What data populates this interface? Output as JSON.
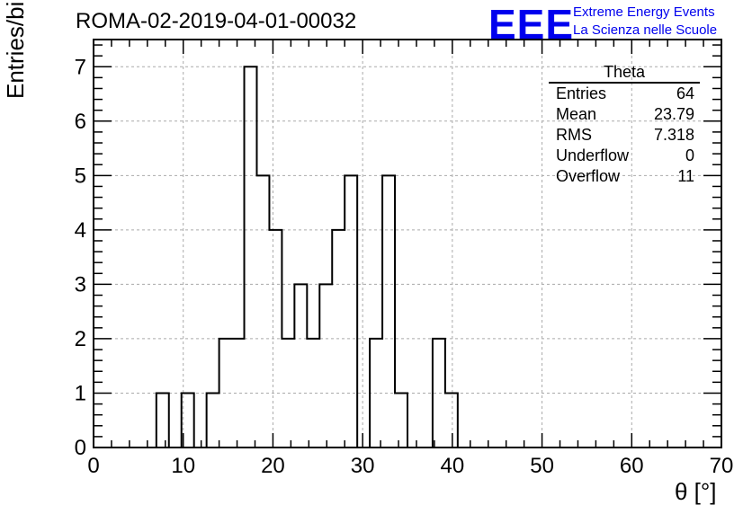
{
  "title": "ROMA-02-2019-04-01-00032",
  "logo": {
    "mark": "EEE",
    "line1": "Extreme Energy Events",
    "line2": "La Scienza nelle Scuole",
    "color": "#0000ee"
  },
  "stats_box": {
    "name": "Theta",
    "rows": [
      {
        "label": "Entries",
        "value": "64"
      },
      {
        "label": "Mean",
        "value": "23.79"
      },
      {
        "label": "RMS",
        "value": "7.318"
      },
      {
        "label": "Underflow",
        "value": "0"
      },
      {
        "label": "Overflow",
        "value": "11"
      }
    ]
  },
  "chart_data": {
    "type": "histogram",
    "title": "ROMA-02-2019-04-01-00032",
    "xlabel": "θ [°]",
    "ylabel": "Entries/bin",
    "xlim": [
      0,
      70
    ],
    "ylim": [
      0,
      7.5
    ],
    "bin_width": 1.4,
    "xticks": [
      0,
      10,
      20,
      30,
      40,
      50,
      60,
      70
    ],
    "yticks": [
      0,
      1,
      2,
      3,
      4,
      5,
      6,
      7
    ],
    "grid": true,
    "values": [
      0,
      0,
      0,
      0,
      0,
      1,
      0,
      1,
      0,
      1,
      2,
      2,
      7,
      5,
      4,
      2,
      3,
      2,
      3,
      4,
      5,
      0,
      2,
      5,
      1,
      0,
      0,
      2,
      1,
      0,
      0,
      0,
      0,
      0,
      0,
      0,
      0,
      0,
      0,
      0,
      0,
      0,
      0,
      0,
      0,
      0,
      0,
      0,
      0,
      0
    ],
    "line_color": "#000000"
  }
}
